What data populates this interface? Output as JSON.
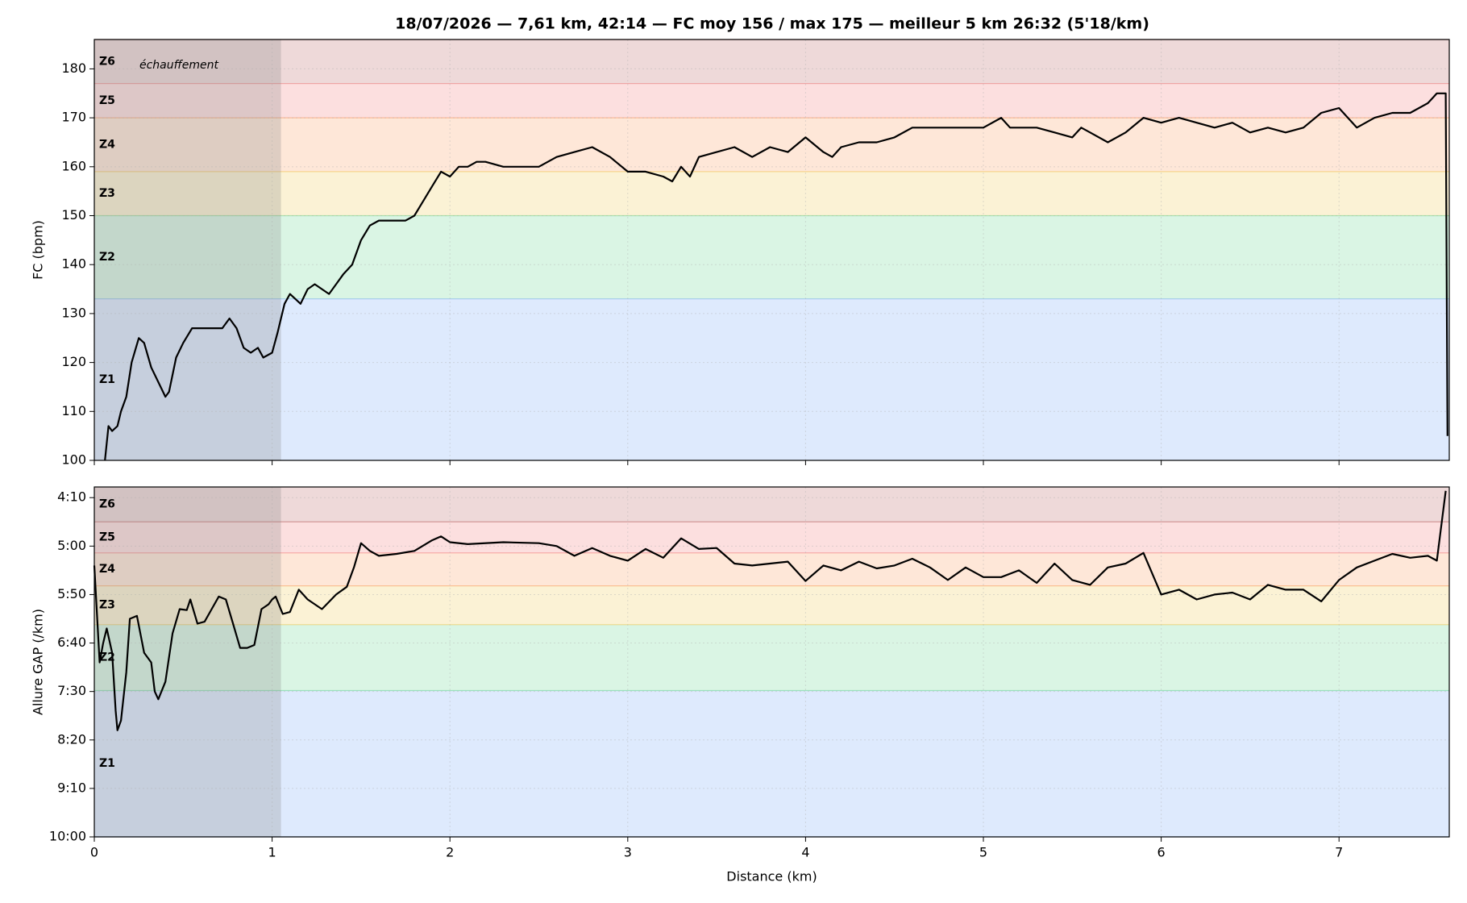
{
  "chart_data": [
    {
      "type": "line",
      "title": "18/07/2026 — 7,61 km, 42:14 — FC moy 156 / max 175 — meilleur 5 km 26:32 (5'18/km)",
      "ylabel": "FC (bpm)",
      "xlim": [
        0,
        7.62
      ],
      "xticks": [
        0,
        1,
        2,
        3,
        4,
        5,
        6,
        7
      ],
      "ylim": [
        100,
        186
      ],
      "yticks": [
        100,
        110,
        120,
        130,
        140,
        150,
        160,
        170,
        180
      ],
      "grid": true,
      "color": "#000000",
      "zones": [
        {
          "label": "Z1",
          "from": 100,
          "to": 133,
          "color": "#3b82f6"
        },
        {
          "label": "Z2",
          "from": 133,
          "to": 150,
          "color": "#22c55e"
        },
        {
          "label": "Z3",
          "from": 150,
          "to": 159,
          "color": "#eab308"
        },
        {
          "label": "Z4",
          "from": 159,
          "to": 170,
          "color": "#f97316"
        },
        {
          "label": "Z5",
          "from": 170,
          "to": 177,
          "color": "#ef4444"
        },
        {
          "label": "Z6",
          "from": 177,
          "to": 186,
          "color": "#991b1b"
        }
      ],
      "shade": {
        "from": 0,
        "to": 1.05,
        "label": "échauffement",
        "color": "#808080"
      },
      "x": [
        0.06,
        0.08,
        0.1,
        0.13,
        0.15,
        0.18,
        0.21,
        0.25,
        0.28,
        0.32,
        0.36,
        0.4,
        0.42,
        0.46,
        0.5,
        0.55,
        0.6,
        0.7,
        0.72,
        0.76,
        0.8,
        0.84,
        0.88,
        0.92,
        0.95,
        1.0,
        1.03,
        1.07,
        1.1,
        1.13,
        1.16,
        1.2,
        1.24,
        1.28,
        1.32,
        1.36,
        1.4,
        1.45,
        1.5,
        1.55,
        1.6,
        1.65,
        1.7,
        1.75,
        1.8,
        1.85,
        1.9,
        1.95,
        2.0,
        2.05,
        2.1,
        2.15,
        2.2,
        2.3,
        2.4,
        2.5,
        2.6,
        2.7,
        2.8,
        2.9,
        3.0,
        3.1,
        3.2,
        3.25,
        3.3,
        3.35,
        3.4,
        3.5,
        3.6,
        3.7,
        3.8,
        3.9,
        4.0,
        4.1,
        4.15,
        4.2,
        4.3,
        4.4,
        4.5,
        4.6,
        4.7,
        4.8,
        4.9,
        5.0,
        5.1,
        5.15,
        5.3,
        5.4,
        5.5,
        5.55,
        5.6,
        5.7,
        5.8,
        5.9,
        6.0,
        6.1,
        6.2,
        6.3,
        6.4,
        6.5,
        6.6,
        6.7,
        6.8,
        6.9,
        7.0,
        7.1,
        7.2,
        7.3,
        7.4,
        7.5,
        7.55,
        7.6,
        7.61
      ],
      "values": [
        100,
        107,
        106,
        107,
        110,
        113,
        120,
        125,
        124,
        119,
        116,
        113,
        114,
        121,
        124,
        127,
        127,
        127,
        127,
        129,
        127,
        123,
        122,
        123,
        121,
        122,
        126,
        132,
        134,
        133,
        132,
        135,
        136,
        135,
        134,
        136,
        138,
        140,
        145,
        148,
        149,
        149,
        149,
        149,
        150,
        153,
        156,
        159,
        158,
        160,
        160,
        161,
        161,
        160,
        160,
        160,
        162,
        163,
        164,
        162,
        159,
        159,
        158,
        157,
        160,
        158,
        162,
        163,
        164,
        162,
        164,
        163,
        166,
        163,
        162,
        164,
        165,
        165,
        166,
        168,
        168,
        168,
        168,
        168,
        170,
        168,
        168,
        167,
        166,
        168,
        167,
        165,
        167,
        170,
        169,
        170,
        169,
        168,
        169,
        167,
        168,
        167,
        168,
        171,
        172,
        168,
        170,
        171,
        171,
        173,
        175,
        175,
        105
      ]
    },
    {
      "type": "line",
      "ylabel": "Allure GAP (/km)",
      "xlabel": "Distance (km)",
      "xlim": [
        0,
        7.62
      ],
      "xticks": [
        0,
        1,
        2,
        3,
        4,
        5,
        6,
        7
      ],
      "ylim": [
        600,
        239
      ],
      "yticks": [
        {
          "value": 250,
          "label": "4:10"
        },
        {
          "value": 300,
          "label": "5:00"
        },
        {
          "value": 350,
          "label": "5:50"
        },
        {
          "value": 400,
          "label": "6:40"
        },
        {
          "value": 450,
          "label": "7:30"
        },
        {
          "value": 500,
          "label": "8:20"
        },
        {
          "value": 550,
          "label": "9:10"
        },
        {
          "value": 600,
          "label": "10:00"
        }
      ],
      "grid": true,
      "color": "#000000",
      "zones": [
        {
          "label": "Z1",
          "from": 449,
          "to": 600,
          "color": "#3b82f6"
        },
        {
          "label": "Z2",
          "from": 381,
          "to": 449,
          "color": "#22c55e"
        },
        {
          "label": "Z3",
          "from": 341,
          "to": 381,
          "color": "#eab308"
        },
        {
          "label": "Z4",
          "from": 307,
          "to": 341,
          "color": "#f97316"
        },
        {
          "label": "Z5",
          "from": 275,
          "to": 307,
          "color": "#ef4444"
        },
        {
          "label": "Z6",
          "from": 239,
          "to": 275,
          "color": "#991b1b"
        }
      ],
      "shade": {
        "from": 0,
        "to": 1.05,
        "color": "#808080"
      },
      "x": [
        0.0,
        0.03,
        0.05,
        0.07,
        0.1,
        0.12,
        0.13,
        0.15,
        0.18,
        0.2,
        0.24,
        0.28,
        0.32,
        0.34,
        0.36,
        0.4,
        0.44,
        0.48,
        0.52,
        0.54,
        0.58,
        0.62,
        0.66,
        0.7,
        0.74,
        0.78,
        0.82,
        0.86,
        0.9,
        0.94,
        0.98,
        1.0,
        1.02,
        1.06,
        1.1,
        1.15,
        1.2,
        1.28,
        1.36,
        1.42,
        1.46,
        1.5,
        1.55,
        1.6,
        1.7,
        1.8,
        1.9,
        1.95,
        2.0,
        2.1,
        2.3,
        2.5,
        2.6,
        2.7,
        2.8,
        2.9,
        3.0,
        3.1,
        3.2,
        3.3,
        3.4,
        3.5,
        3.6,
        3.7,
        3.8,
        3.9,
        4.0,
        4.1,
        4.2,
        4.3,
        4.4,
        4.5,
        4.6,
        4.7,
        4.8,
        4.9,
        5.0,
        5.1,
        5.2,
        5.3,
        5.4,
        5.5,
        5.6,
        5.7,
        5.8,
        5.9,
        6.0,
        6.1,
        6.2,
        6.3,
        6.4,
        6.5,
        6.6,
        6.7,
        6.8,
        6.9,
        7.0,
        7.1,
        7.2,
        7.3,
        7.4,
        7.5,
        7.55,
        7.6
      ],
      "values": [
        320,
        420,
        400,
        385,
        410,
        470,
        490,
        480,
        430,
        375,
        372,
        410,
        420,
        450,
        458,
        440,
        390,
        365,
        366,
        355,
        380,
        378,
        365,
        352,
        355,
        380,
        405,
        405,
        402,
        365,
        360,
        355,
        352,
        370,
        368,
        345,
        355,
        365,
        350,
        342,
        322,
        297,
        305,
        310,
        308,
        305,
        294,
        290,
        296,
        298,
        296,
        297,
        300,
        310,
        302,
        310,
        315,
        303,
        312,
        292,
        303,
        302,
        318,
        320,
        318,
        316,
        336,
        320,
        325,
        316,
        323,
        320,
        313,
        322,
        335,
        322,
        332,
        332,
        325,
        338,
        318,
        335,
        340,
        322,
        318,
        307,
        350,
        345,
        355,
        350,
        348,
        355,
        340,
        345,
        345,
        357,
        335,
        322,
        315,
        308,
        312,
        310,
        315,
        243
      ]
    }
  ]
}
